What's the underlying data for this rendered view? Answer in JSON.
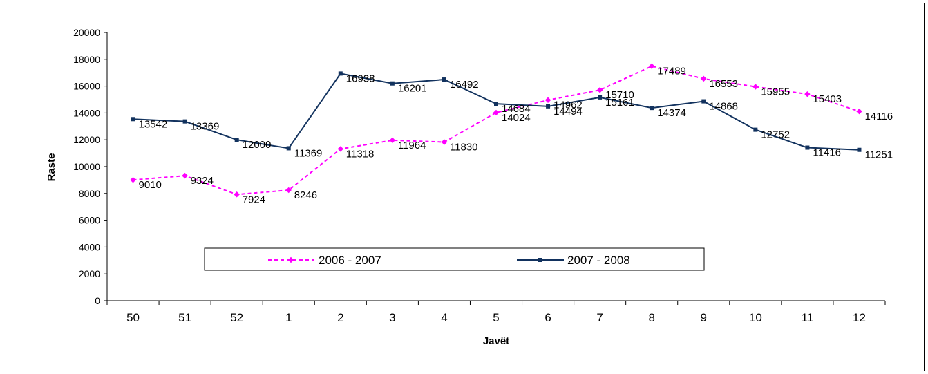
{
  "chart_data": {
    "type": "line",
    "title": "",
    "xlabel": "Javët",
    "ylabel": "Raste",
    "categories": [
      "50",
      "51",
      "52",
      "1",
      "2",
      "3",
      "4",
      "5",
      "6",
      "7",
      "8",
      "9",
      "10",
      "11",
      "12"
    ],
    "ylim": [
      0,
      20000
    ],
    "yticks": [
      0,
      2000,
      4000,
      6000,
      8000,
      10000,
      12000,
      14000,
      16000,
      18000,
      20000
    ],
    "grid": false,
    "legend_position": "bottom-center-inside",
    "series": [
      {
        "name": "2006 - 2007",
        "color": "#ff00ff",
        "style": "dashed",
        "marker": "diamond",
        "values": [
          9010,
          9324,
          7924,
          8246,
          11318,
          11964,
          11830,
          14024,
          14962,
          15710,
          17489,
          16553,
          15955,
          15403,
          14116
        ]
      },
      {
        "name": "2007 - 2008",
        "color": "#12325e",
        "style": "solid",
        "marker": "square",
        "values": [
          13542,
          13369,
          12000,
          11369,
          16938,
          16201,
          16492,
          14684,
          14494,
          15161,
          14374,
          14868,
          12752,
          11416,
          11251
        ]
      }
    ]
  }
}
